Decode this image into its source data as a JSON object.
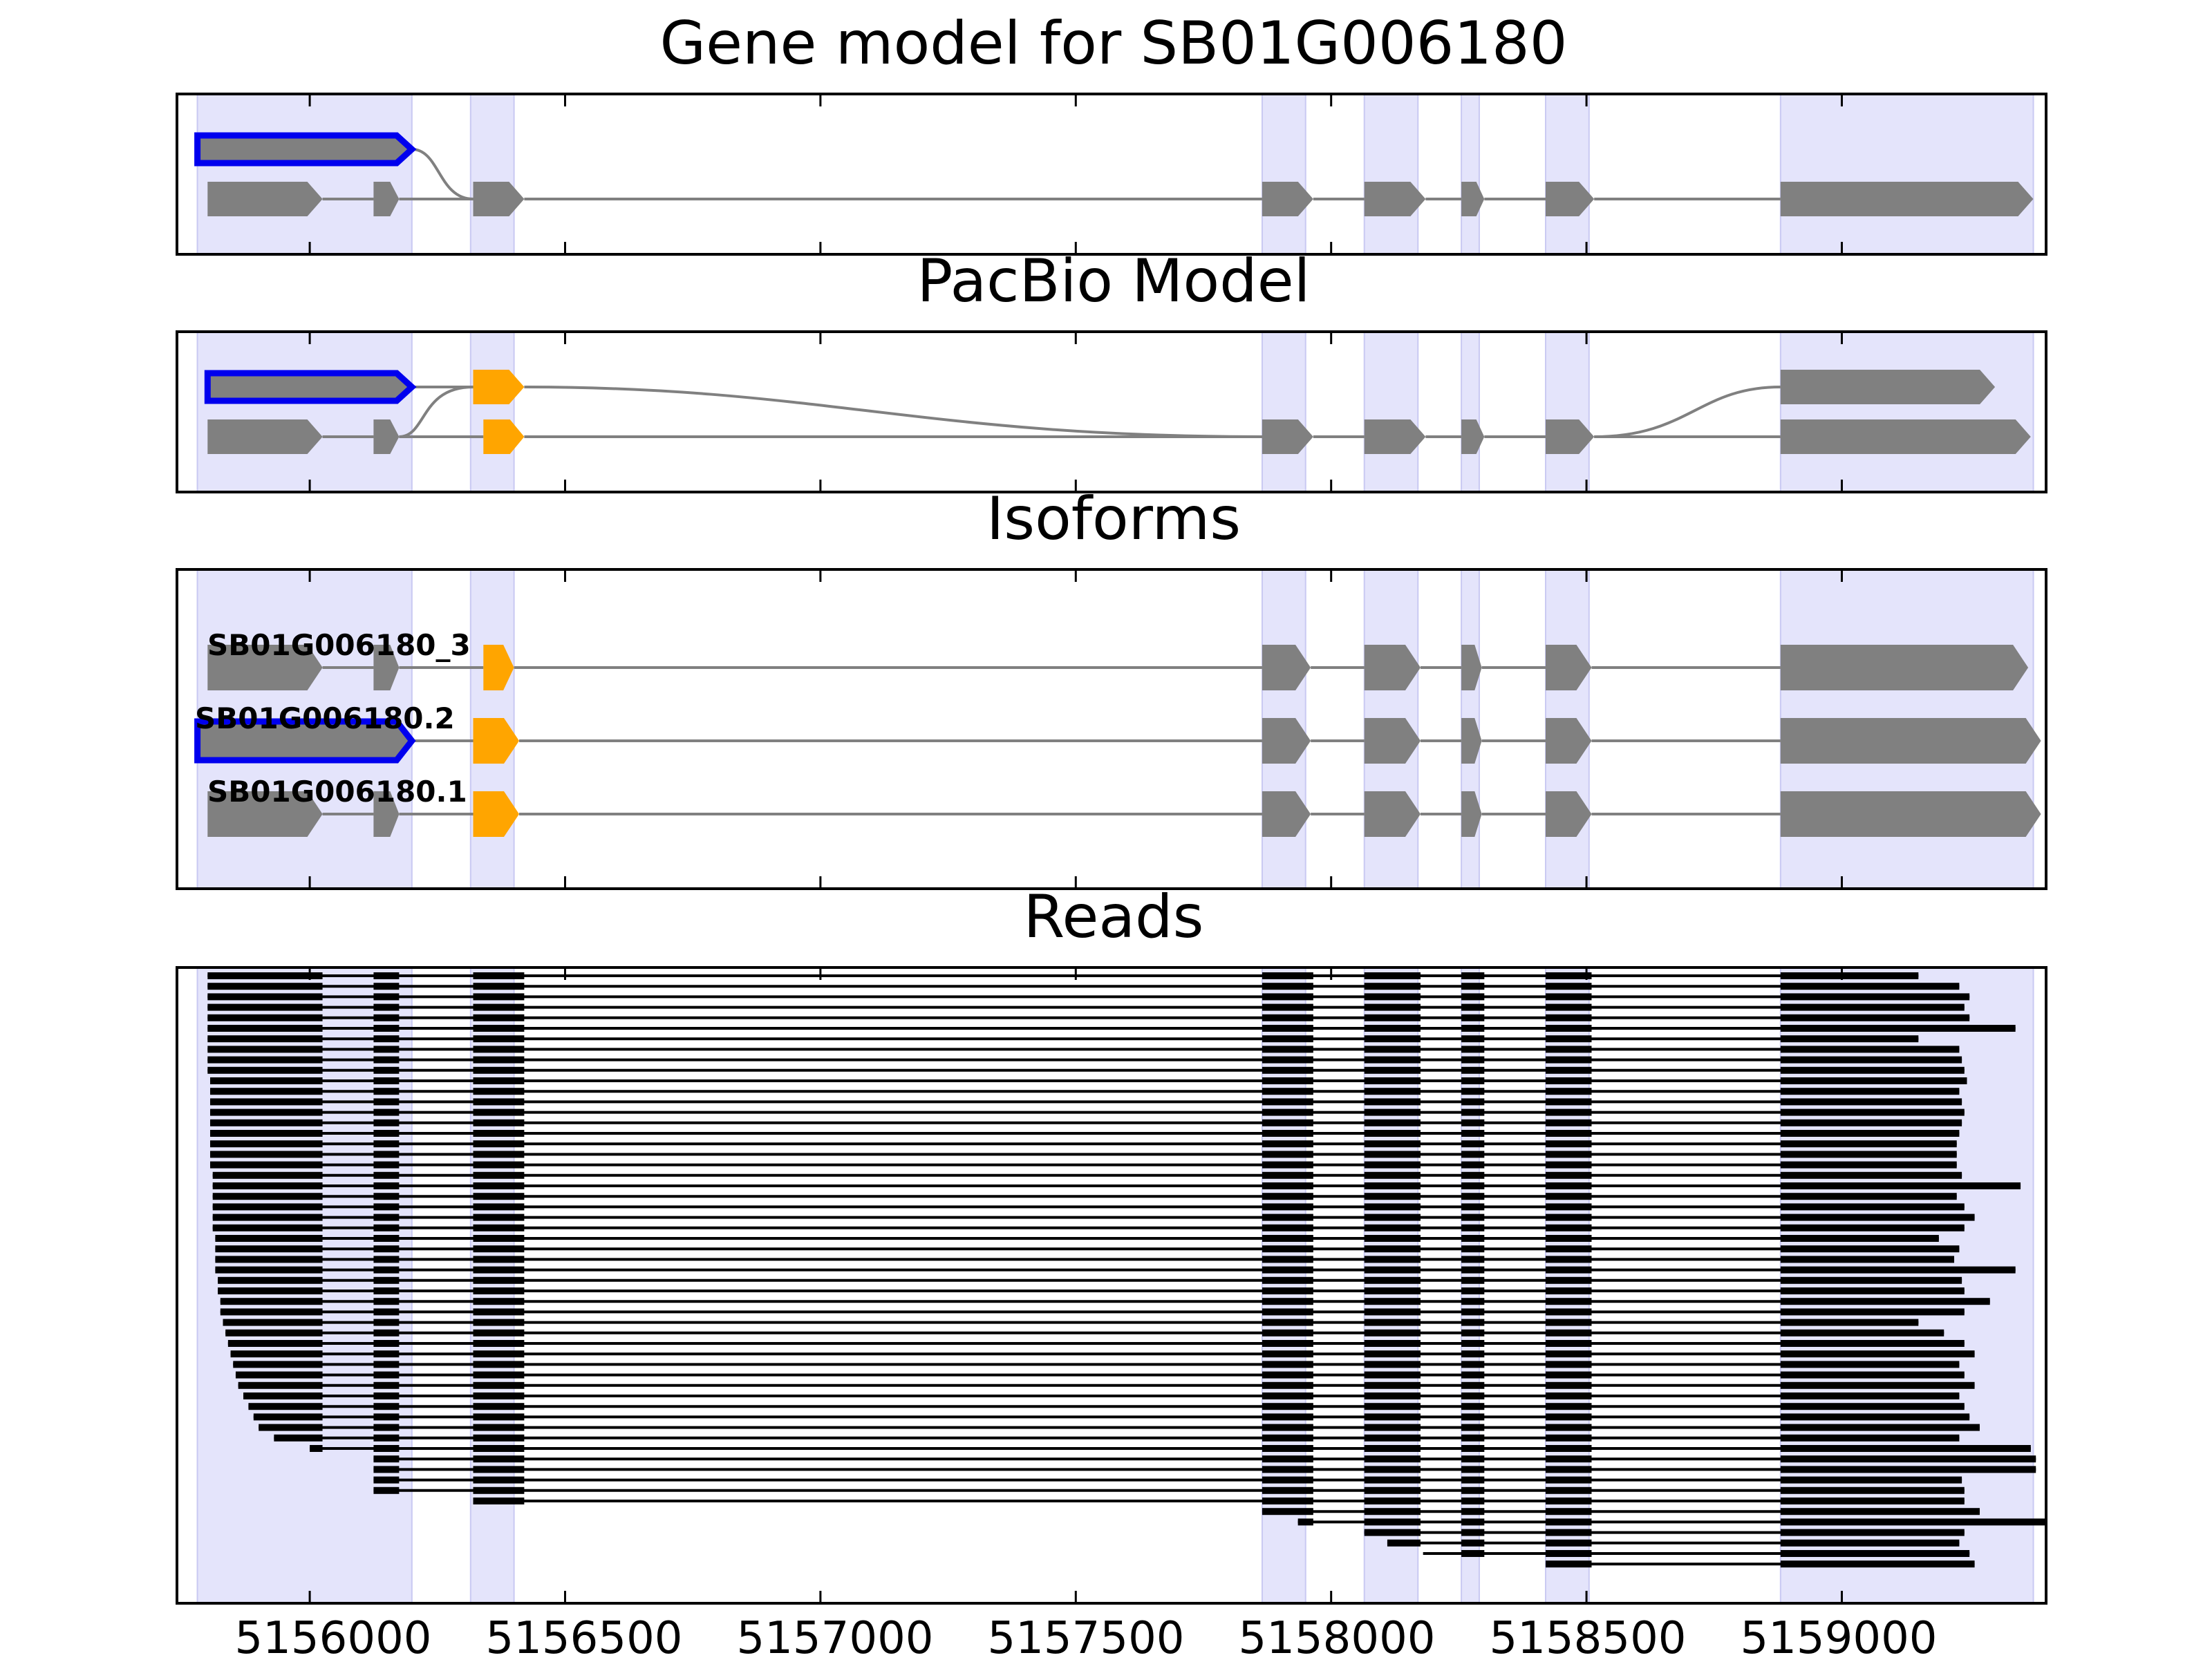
{
  "figure": {
    "panel_titles": {
      "gene_model": "Gene model for SB01G006180",
      "pacbio": "PacBio Model",
      "isoforms": "Isoforms",
      "reads": "Reads"
    },
    "x_axis": {
      "range": [
        5155740,
        5159400
      ],
      "ticks": [
        5156000,
        5156500,
        5157000,
        5157500,
        5158000,
        5158500,
        5159000
      ],
      "tick_labels": [
        "5156000",
        "5156500",
        "5157000",
        "5157500",
        "5158000",
        "5158500",
        "5159000"
      ]
    },
    "colors": {
      "exon": "#808080",
      "utr_highlight": "#0000ee",
      "alt_exon": "#ffa500",
      "shade": "#e4e4fb",
      "intron": "#808080",
      "read": "#000000"
    },
    "shaded_regions": [
      [
        5155780,
        5156200
      ],
      [
        5156315,
        5156400
      ],
      [
        5157865,
        5157950
      ],
      [
        5158065,
        5158170
      ],
      [
        5158255,
        5158290
      ],
      [
        5158420,
        5158505
      ],
      [
        5158880,
        5159375
      ]
    ],
    "isoform_labels": [
      "SB01G006180_3",
      "SB01G006180.2",
      "SB01G006180.1"
    ]
  },
  "chart_data": {
    "type": "gene_structure",
    "title": "Gene model for SB01G006180",
    "gene_model": {
      "top_exon": [
        5155780,
        5156200
      ],
      "bottom_exons": [
        [
          5155800,
          5156025
        ],
        [
          5156125,
          5156175
        ],
        [
          5156320,
          5156420
        ],
        [
          5157865,
          5157965
        ],
        [
          5158065,
          5158185
        ],
        [
          5158255,
          5158300
        ],
        [
          5158420,
          5158515
        ],
        [
          5158880,
          5159375
        ]
      ]
    },
    "pacbio_model": {
      "top_exons": [
        [
          5155800,
          5156200
        ],
        [
          5156320,
          5156420
        ],
        [
          5158880,
          5159300
        ]
      ],
      "bottom_exons": [
        [
          5155800,
          5156025
        ],
        [
          5156125,
          5156175
        ],
        [
          5156340,
          5156420
        ],
        [
          5157865,
          5157965
        ],
        [
          5158065,
          5158185
        ],
        [
          5158255,
          5158300
        ],
        [
          5158420,
          5158515
        ],
        [
          5158880,
          5159370
        ]
      ]
    },
    "isoforms": [
      {
        "name": "SB01G006180_3",
        "exons": [
          [
            5155800,
            5156025
          ],
          [
            5156125,
            5156175
          ],
          [
            5156340,
            5156400
          ],
          [
            5157865,
            5157960
          ],
          [
            5158065,
            5158175
          ],
          [
            5158255,
            5158295
          ],
          [
            5158420,
            5158510
          ],
          [
            5158880,
            5159365
          ]
        ]
      },
      {
        "name": "SB01G006180.2",
        "exons": [
          [
            5155780,
            5156200
          ],
          [
            5156320,
            5156410
          ],
          [
            5157865,
            5157960
          ],
          [
            5158065,
            5158175
          ],
          [
            5158255,
            5158295
          ],
          [
            5158420,
            5158510
          ],
          [
            5158880,
            5159390
          ]
        ]
      },
      {
        "name": "SB01G006180.1",
        "exons": [
          [
            5155800,
            5156025
          ],
          [
            5156125,
            5156175
          ],
          [
            5156320,
            5156410
          ],
          [
            5157865,
            5157960
          ],
          [
            5158065,
            5158175
          ],
          [
            5158255,
            5158295
          ],
          [
            5158420,
            5158510
          ],
          [
            5158880,
            5159390
          ]
        ]
      }
    ],
    "reads": {
      "count": 57,
      "read_starts": [
        5155800,
        5155800,
        5155800,
        5155800,
        5155800,
        5155800,
        5155800,
        5155800,
        5155800,
        5155800,
        5155805,
        5155805,
        5155805,
        5155805,
        5155805,
        5155805,
        5155805,
        5155805,
        5155805,
        5155810,
        5155810,
        5155810,
        5155810,
        5155810,
        5155810,
        5155815,
        5155815,
        5155815,
        5155815,
        5155820,
        5155820,
        5155825,
        5155825,
        5155830,
        5155835,
        5155840,
        5155845,
        5155850,
        5155855,
        5155860,
        5155870,
        5155880,
        5155890,
        5155900,
        5155930,
        5156000,
        5156125,
        5156125,
        5156125,
        5156125,
        5156320,
        5157865,
        5157935,
        5158065,
        5158110,
        5158180,
        5158420
      ],
      "read_ends": [
        5159150,
        5159230,
        5159250,
        5159240,
        5159250,
        5159340,
        5159150,
        5159230,
        5159235,
        5159240,
        5159245,
        5159230,
        5159235,
        5159240,
        5159235,
        5159230,
        5159225,
        5159225,
        5159225,
        5159235,
        5159350,
        5159225,
        5159240,
        5159260,
        5159240,
        5159190,
        5159230,
        5159220,
        5159340,
        5159235,
        5159240,
        5159290,
        5159240,
        5159150,
        5159200,
        5159240,
        5159260,
        5159230,
        5159240,
        5159260,
        5159230,
        5159240,
        5159250,
        5159270,
        5159230,
        5159370,
        5159380,
        5159380,
        5159235,
        5159240,
        5159240,
        5159270,
        5159400,
        5159240,
        5159230,
        5159250,
        5159260
      ],
      "xlim": [
        5155740,
        5159400
      ]
    }
  }
}
